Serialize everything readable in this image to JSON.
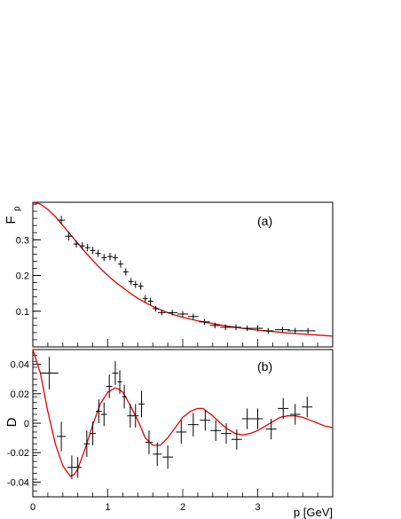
{
  "colors": {
    "data": "#000000",
    "fit": "#e60000",
    "frame": "#000000",
    "background": "#ffffff"
  },
  "chart_data": [
    {
      "type": "scatter",
      "panel_label": "(a)",
      "ylabel": "F",
      "ylabel_subscript": "p",
      "xlim": [
        0,
        4.0
      ],
      "ylim": [
        0.0,
        0.405
      ],
      "yticks": [
        0.1,
        0.2,
        0.3
      ],
      "ytick_labels": [
        "0.1",
        "0.2",
        "0.3"
      ],
      "grid": false,
      "series": [
        {
          "kind": "points_with_errors",
          "x": [
            0.38,
            0.48,
            0.58,
            0.66,
            0.73,
            0.8,
            0.87,
            0.95,
            1.03,
            1.1,
            1.17,
            1.24,
            1.31,
            1.37,
            1.44,
            1.5,
            1.57,
            1.64,
            1.72,
            1.86,
            2.0,
            2.14,
            2.29,
            2.43,
            2.57,
            2.71,
            2.86,
            3.0,
            3.14,
            3.33,
            3.5,
            3.67
          ],
          "y": [
            0.355,
            0.31,
            0.288,
            0.283,
            0.278,
            0.27,
            0.262,
            0.25,
            0.253,
            0.25,
            0.232,
            0.21,
            0.183,
            0.175,
            0.17,
            0.135,
            0.128,
            0.107,
            0.096,
            0.096,
            0.092,
            0.085,
            0.07,
            0.06,
            0.055,
            0.055,
            0.052,
            0.052,
            0.045,
            0.048,
            0.045,
            0.045
          ],
          "xerr": [
            0.05,
            0.05,
            0.04,
            0.035,
            0.035,
            0.035,
            0.035,
            0.035,
            0.035,
            0.035,
            0.035,
            0.035,
            0.035,
            0.035,
            0.035,
            0.035,
            0.035,
            0.04,
            0.05,
            0.07,
            0.07,
            0.07,
            0.07,
            0.07,
            0.07,
            0.07,
            0.07,
            0.07,
            0.07,
            0.1,
            0.1,
            0.1
          ],
          "yerr": [
            0.012,
            0.012,
            0.01,
            0.01,
            0.01,
            0.01,
            0.01,
            0.01,
            0.01,
            0.01,
            0.01,
            0.01,
            0.01,
            0.01,
            0.01,
            0.01,
            0.01,
            0.008,
            0.008,
            0.008,
            0.008,
            0.008,
            0.008,
            0.008,
            0.008,
            0.008,
            0.008,
            0.008,
            0.008,
            0.008,
            0.008,
            0.008
          ]
        },
        {
          "kind": "curve",
          "x": [
            0.0,
            0.1,
            0.2,
            0.3,
            0.4,
            0.5,
            0.6,
            0.7,
            0.8,
            0.9,
            1.0,
            1.1,
            1.2,
            1.3,
            1.4,
            1.5,
            1.6,
            1.7,
            1.8,
            1.9,
            2.0,
            2.2,
            2.4,
            2.6,
            2.8,
            3.0,
            3.2,
            3.4,
            3.6,
            3.8,
            4.0
          ],
          "y": [
            0.405,
            0.4,
            0.385,
            0.365,
            0.34,
            0.315,
            0.29,
            0.265,
            0.242,
            0.22,
            0.2,
            0.182,
            0.166,
            0.15,
            0.136,
            0.124,
            0.113,
            0.104,
            0.096,
            0.089,
            0.083,
            0.073,
            0.065,
            0.058,
            0.052,
            0.047,
            0.043,
            0.039,
            0.036,
            0.033,
            0.03
          ]
        }
      ]
    },
    {
      "type": "scatter",
      "panel_label": "(b)",
      "ylabel": "D",
      "xlabel": "p [GeV]",
      "xlim": [
        0,
        4.0
      ],
      "ylim": [
        -0.05,
        0.05
      ],
      "xticks": [
        0,
        1,
        2,
        3
      ],
      "xtick_labels": [
        "0",
        "1",
        "2",
        "3"
      ],
      "yticks": [
        -0.04,
        -0.02,
        0,
        0.02,
        0.04
      ],
      "ytick_labels": [
        "-0.04",
        "-0.02",
        "0",
        "0.02",
        "0.04"
      ],
      "grid": false,
      "series": [
        {
          "kind": "points_with_errors",
          "x": [
            0.22,
            0.38,
            0.52,
            0.6,
            0.72,
            0.8,
            0.88,
            0.95,
            1.02,
            1.1,
            1.16,
            1.22,
            1.3,
            1.37,
            1.45,
            1.55,
            1.66,
            1.8,
            1.98,
            2.14,
            2.3,
            2.44,
            2.58,
            2.72,
            2.86,
            3.0,
            3.18,
            3.34,
            3.5,
            3.66
          ],
          "y": [
            0.034,
            -0.009,
            -0.03,
            -0.03,
            -0.014,
            -0.007,
            0.008,
            0.006,
            0.025,
            0.034,
            0.028,
            0.018,
            0.005,
            0.005,
            0.013,
            -0.013,
            -0.021,
            -0.023,
            -0.006,
            -0.001,
            0.002,
            -0.005,
            -0.007,
            -0.011,
            0.003,
            0.003,
            -0.004,
            0.01,
            0.006,
            0.011
          ],
          "xerr": [
            0.12,
            0.06,
            0.06,
            0.05,
            0.04,
            0.04,
            0.04,
            0.04,
            0.04,
            0.04,
            0.03,
            0.03,
            0.04,
            0.04,
            0.04,
            0.05,
            0.06,
            0.07,
            0.07,
            0.07,
            0.07,
            0.07,
            0.07,
            0.07,
            0.07,
            0.07,
            0.07,
            0.07,
            0.07,
            0.07
          ],
          "yerr": [
            0.011,
            0.01,
            0.008,
            0.007,
            0.009,
            0.008,
            0.008,
            0.008,
            0.008,
            0.008,
            0.008,
            0.008,
            0.008,
            0.008,
            0.009,
            0.008,
            0.008,
            0.008,
            0.008,
            0.008,
            0.007,
            0.007,
            0.007,
            0.007,
            0.007,
            0.007,
            0.007,
            0.007,
            0.007,
            0.007
          ]
        },
        {
          "kind": "curve",
          "x": [
            0.0,
            0.1,
            0.2,
            0.3,
            0.4,
            0.5,
            0.55,
            0.6,
            0.7,
            0.8,
            0.9,
            1.0,
            1.1,
            1.15,
            1.2,
            1.3,
            1.4,
            1.5,
            1.6,
            1.7,
            1.8,
            1.9,
            2.0,
            2.1,
            2.2,
            2.27,
            2.4,
            2.5,
            2.6,
            2.7,
            2.8,
            2.9,
            3.0,
            3.1,
            3.2,
            3.3,
            3.4,
            3.5,
            3.6,
            3.7,
            3.8,
            3.9,
            4.0
          ],
          "y": [
            0.05,
            0.034,
            0.008,
            -0.014,
            -0.029,
            -0.036,
            -0.035,
            -0.031,
            -0.017,
            -0.001,
            0.013,
            0.021,
            0.024,
            0.023,
            0.021,
            0.012,
            0.002,
            -0.01,
            -0.015,
            -0.015,
            -0.01,
            -0.003,
            0.004,
            0.008,
            0.01,
            0.01,
            0.005,
            0.0,
            -0.004,
            -0.007,
            -0.008,
            -0.007,
            -0.005,
            -0.002,
            0.001,
            0.004,
            0.005,
            0.005,
            0.004,
            0.002,
            0.0,
            -0.002,
            -0.003
          ]
        }
      ]
    }
  ]
}
